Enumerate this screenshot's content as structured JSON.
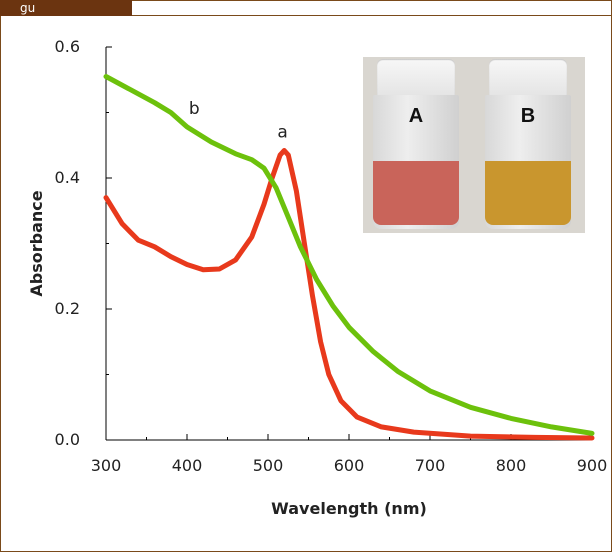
{
  "figure_tab": {
    "label": "gu"
  },
  "chart_data": {
    "type": "line",
    "xlabel": "Wavelength (nm)",
    "ylabel": "Absorbance",
    "xlim": [
      300,
      900
    ],
    "ylim": [
      0,
      0.6
    ],
    "x_ticks": [
      "300",
      "400",
      "500",
      "600",
      "700",
      "800",
      "900"
    ],
    "y_ticks": [
      "0.0",
      "0.2",
      "0.4",
      "0.6"
    ],
    "series": [
      {
        "name": "a",
        "color": "#e8391c",
        "points": [
          [
            300,
            0.37
          ],
          [
            320,
            0.33
          ],
          [
            340,
            0.305
          ],
          [
            360,
            0.295
          ],
          [
            380,
            0.28
          ],
          [
            400,
            0.268
          ],
          [
            420,
            0.26
          ],
          [
            440,
            0.261
          ],
          [
            460,
            0.275
          ],
          [
            480,
            0.31
          ],
          [
            495,
            0.36
          ],
          [
            505,
            0.4
          ],
          [
            515,
            0.435
          ],
          [
            520,
            0.442
          ],
          [
            525,
            0.435
          ],
          [
            535,
            0.38
          ],
          [
            545,
            0.3
          ],
          [
            555,
            0.22
          ],
          [
            565,
            0.15
          ],
          [
            575,
            0.1
          ],
          [
            590,
            0.06
          ],
          [
            610,
            0.035
          ],
          [
            640,
            0.02
          ],
          [
            680,
            0.012
          ],
          [
            750,
            0.006
          ],
          [
            830,
            0.004
          ],
          [
            900,
            0.003
          ]
        ]
      },
      {
        "name": "b",
        "color": "#6cc10c",
        "points": [
          [
            300,
            0.555
          ],
          [
            330,
            0.535
          ],
          [
            360,
            0.515
          ],
          [
            380,
            0.5
          ],
          [
            400,
            0.478
          ],
          [
            430,
            0.455
          ],
          [
            460,
            0.437
          ],
          [
            480,
            0.428
          ],
          [
            495,
            0.415
          ],
          [
            510,
            0.385
          ],
          [
            525,
            0.34
          ],
          [
            540,
            0.295
          ],
          [
            560,
            0.245
          ],
          [
            580,
            0.205
          ],
          [
            600,
            0.172
          ],
          [
            630,
            0.135
          ],
          [
            660,
            0.105
          ],
          [
            700,
            0.075
          ],
          [
            750,
            0.05
          ],
          [
            800,
            0.033
          ],
          [
            850,
            0.02
          ],
          [
            900,
            0.01
          ]
        ]
      }
    ],
    "annotations": [
      "a",
      "b"
    ]
  },
  "inset_photo": {
    "vials": [
      {
        "label": "A",
        "liquid_color": "#c9645a"
      },
      {
        "label": "B",
        "liquid_color": "#c9962e"
      }
    ]
  }
}
